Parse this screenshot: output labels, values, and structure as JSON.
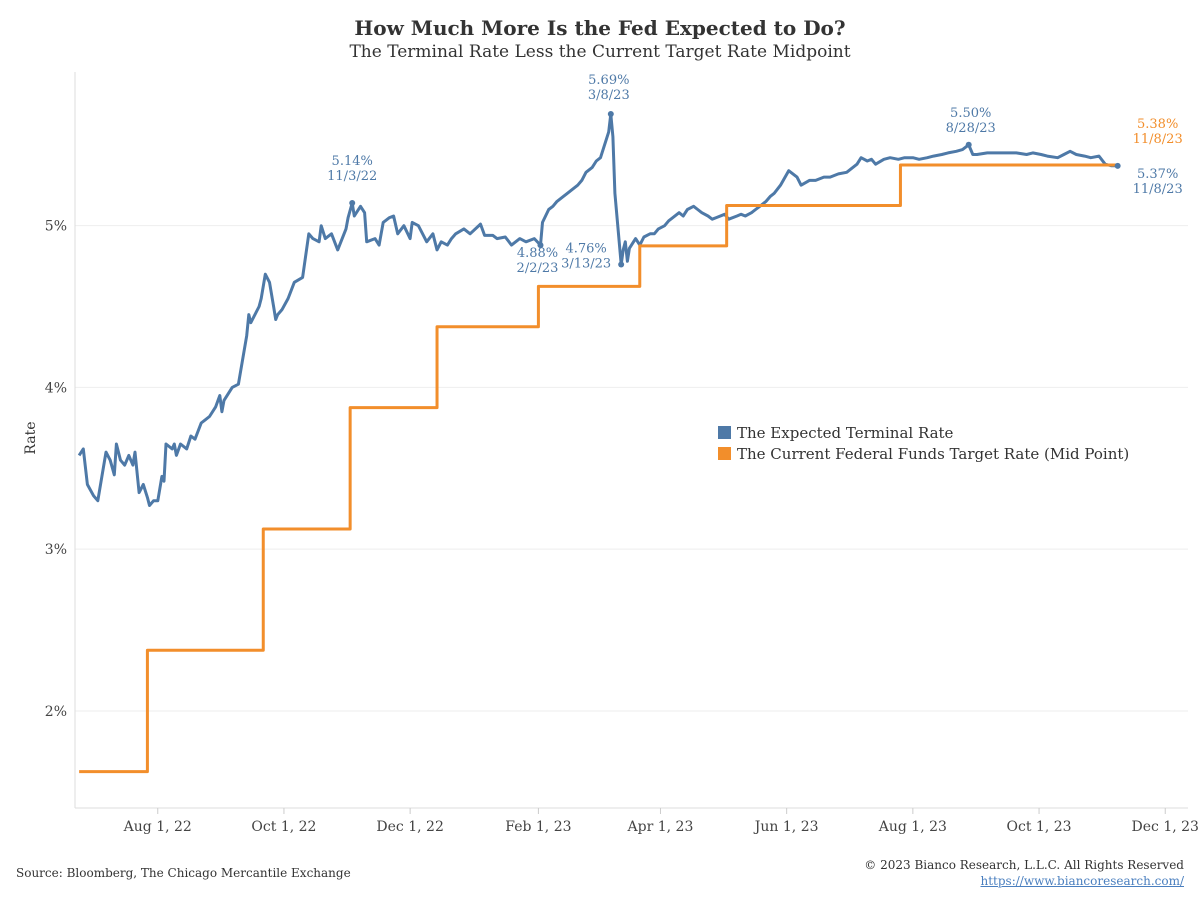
{
  "title": "How Much More Is the Fed Expected to Do?",
  "subtitle": "The Terminal Rate Less the Current Target Rate Midpoint",
  "source": "Source: Bloomberg, The Chicago Mercantile Exchange",
  "copyright": "© 2023 Bianco Research, L.L.C. All Rights Reserved",
  "url": "https://www.biancoresearch.com/",
  "colors": {
    "terminal": "#4e79a7",
    "target": "#f28e2b",
    "grid": "#eeeeee"
  },
  "chart_data": {
    "type": "line",
    "title": "How Much More Is the Fed Expected to Do?",
    "subtitle": "The Terminal Rate Less the Current Target Rate Midpoint",
    "ylabel": "Rate",
    "xlabel": "",
    "ylim": [
      1.4,
      5.95
    ],
    "xlim": [
      "2022-06-22",
      "2023-12-12"
    ],
    "grid": "horizontal",
    "legend_position": "right-center",
    "y_ticks": [
      {
        "value": 2,
        "label": "2%"
      },
      {
        "value": 3,
        "label": "3%"
      },
      {
        "value": 4,
        "label": "4%"
      },
      {
        "value": 5,
        "label": "5%"
      }
    ],
    "x_ticks": [
      {
        "date": "2022-08-01",
        "label": "Aug 1, 22"
      },
      {
        "date": "2022-10-01",
        "label": "Oct 1, 22"
      },
      {
        "date": "2022-12-01",
        "label": "Dec 1, 22"
      },
      {
        "date": "2023-02-01",
        "label": "Feb 1, 23"
      },
      {
        "date": "2023-04-01",
        "label": "Apr 1, 23"
      },
      {
        "date": "2023-06-01",
        "label": "Jun 1, 23"
      },
      {
        "date": "2023-08-01",
        "label": "Aug 1, 23"
      },
      {
        "date": "2023-10-01",
        "label": "Oct 1, 23"
      },
      {
        "date": "2023-12-01",
        "label": "Dec 1, 23"
      }
    ],
    "series": [
      {
        "name": "The Expected Terminal Rate",
        "color": "#4e79a7",
        "points": [
          [
            "2022-06-24",
            3.58
          ],
          [
            "2022-06-26",
            3.62
          ],
          [
            "2022-06-28",
            3.4
          ],
          [
            "2022-07-01",
            3.33
          ],
          [
            "2022-07-03",
            3.3
          ],
          [
            "2022-07-05",
            3.45
          ],
          [
            "2022-07-07",
            3.6
          ],
          [
            "2022-07-09",
            3.55
          ],
          [
            "2022-07-11",
            3.46
          ],
          [
            "2022-07-12",
            3.65
          ],
          [
            "2022-07-14",
            3.55
          ],
          [
            "2022-07-16",
            3.52
          ],
          [
            "2022-07-18",
            3.58
          ],
          [
            "2022-07-20",
            3.52
          ],
          [
            "2022-07-21",
            3.6
          ],
          [
            "2022-07-23",
            3.35
          ],
          [
            "2022-07-25",
            3.4
          ],
          [
            "2022-07-27",
            3.32
          ],
          [
            "2022-07-28",
            3.27
          ],
          [
            "2022-07-30",
            3.3
          ],
          [
            "2022-08-01",
            3.3
          ],
          [
            "2022-08-03",
            3.45
          ],
          [
            "2022-08-04",
            3.42
          ],
          [
            "2022-08-05",
            3.65
          ],
          [
            "2022-08-08",
            3.62
          ],
          [
            "2022-08-09",
            3.65
          ],
          [
            "2022-08-10",
            3.58
          ],
          [
            "2022-08-12",
            3.65
          ],
          [
            "2022-08-15",
            3.62
          ],
          [
            "2022-08-17",
            3.7
          ],
          [
            "2022-08-19",
            3.68
          ],
          [
            "2022-08-22",
            3.78
          ],
          [
            "2022-08-24",
            3.8
          ],
          [
            "2022-08-26",
            3.82
          ],
          [
            "2022-08-29",
            3.88
          ],
          [
            "2022-08-31",
            3.95
          ],
          [
            "2022-09-01",
            3.85
          ],
          [
            "2022-09-02",
            3.92
          ],
          [
            "2022-09-06",
            4.0
          ],
          [
            "2022-09-09",
            4.02
          ],
          [
            "2022-09-13",
            4.32
          ],
          [
            "2022-09-14",
            4.45
          ],
          [
            "2022-09-15",
            4.4
          ],
          [
            "2022-09-19",
            4.5
          ],
          [
            "2022-09-20",
            4.55
          ],
          [
            "2022-09-22",
            4.7
          ],
          [
            "2022-09-24",
            4.65
          ],
          [
            "2022-09-26",
            4.5
          ],
          [
            "2022-09-27",
            4.42
          ],
          [
            "2022-09-28",
            4.45
          ],
          [
            "2022-09-30",
            4.48
          ],
          [
            "2022-10-03",
            4.55
          ],
          [
            "2022-10-06",
            4.65
          ],
          [
            "2022-10-10",
            4.68
          ],
          [
            "2022-10-13",
            4.95
          ],
          [
            "2022-10-15",
            4.92
          ],
          [
            "2022-10-18",
            4.9
          ],
          [
            "2022-10-19",
            5.0
          ],
          [
            "2022-10-21",
            4.92
          ],
          [
            "2022-10-24",
            4.95
          ],
          [
            "2022-10-27",
            4.85
          ],
          [
            "2022-10-31",
            4.98
          ],
          [
            "2022-11-01",
            5.05
          ],
          [
            "2022-11-03",
            5.14
          ],
          [
            "2022-11-04",
            5.06
          ],
          [
            "2022-11-07",
            5.12
          ],
          [
            "2022-11-09",
            5.08
          ],
          [
            "2022-11-10",
            4.9
          ],
          [
            "2022-11-14",
            4.92
          ],
          [
            "2022-11-16",
            4.88
          ],
          [
            "2022-11-18",
            5.02
          ],
          [
            "2022-11-21",
            5.05
          ],
          [
            "2022-11-23",
            5.06
          ],
          [
            "2022-11-25",
            4.95
          ],
          [
            "2022-11-28",
            5.0
          ],
          [
            "2022-12-01",
            4.92
          ],
          [
            "2022-12-02",
            5.02
          ],
          [
            "2022-12-05",
            5.0
          ],
          [
            "2022-12-07",
            4.95
          ],
          [
            "2022-12-09",
            4.9
          ],
          [
            "2022-12-12",
            4.95
          ],
          [
            "2022-12-14",
            4.85
          ],
          [
            "2022-12-16",
            4.9
          ],
          [
            "2022-12-19",
            4.88
          ],
          [
            "2022-12-21",
            4.92
          ],
          [
            "2022-12-23",
            4.95
          ],
          [
            "2022-12-27",
            4.98
          ],
          [
            "2022-12-30",
            4.95
          ],
          [
            "2023-01-04",
            5.01
          ],
          [
            "2023-01-06",
            4.94
          ],
          [
            "2023-01-10",
            4.94
          ],
          [
            "2023-01-12",
            4.92
          ],
          [
            "2023-01-16",
            4.93
          ],
          [
            "2023-01-19",
            4.88
          ],
          [
            "2023-01-23",
            4.92
          ],
          [
            "2023-01-26",
            4.9
          ],
          [
            "2023-01-30",
            4.92
          ],
          [
            "2023-02-02",
            4.88
          ],
          [
            "2023-02-03",
            5.02
          ],
          [
            "2023-02-06",
            5.1
          ],
          [
            "2023-02-08",
            5.12
          ],
          [
            "2023-02-10",
            5.15
          ],
          [
            "2023-02-13",
            5.18
          ],
          [
            "2023-02-15",
            5.2
          ],
          [
            "2023-02-17",
            5.22
          ],
          [
            "2023-02-20",
            5.25
          ],
          [
            "2023-02-22",
            5.28
          ],
          [
            "2023-02-24",
            5.33
          ],
          [
            "2023-02-27",
            5.36
          ],
          [
            "2023-03-01",
            5.4
          ],
          [
            "2023-03-03",
            5.42
          ],
          [
            "2023-03-07",
            5.58
          ],
          [
            "2023-03-08",
            5.69
          ],
          [
            "2023-03-09",
            5.55
          ],
          [
            "2023-03-10",
            5.2
          ],
          [
            "2023-03-13",
            4.76
          ],
          [
            "2023-03-14",
            4.85
          ],
          [
            "2023-03-15",
            4.9
          ],
          [
            "2023-03-16",
            4.78
          ],
          [
            "2023-03-17",
            4.86
          ],
          [
            "2023-03-20",
            4.92
          ],
          [
            "2023-03-22",
            4.88
          ],
          [
            "2023-03-24",
            4.93
          ],
          [
            "2023-03-27",
            4.95
          ],
          [
            "2023-03-29",
            4.95
          ],
          [
            "2023-03-31",
            4.98
          ],
          [
            "2023-04-03",
            5.0
          ],
          [
            "2023-04-05",
            5.03
          ],
          [
            "2023-04-07",
            5.05
          ],
          [
            "2023-04-10",
            5.08
          ],
          [
            "2023-04-12",
            5.06
          ],
          [
            "2023-04-14",
            5.1
          ],
          [
            "2023-04-17",
            5.12
          ],
          [
            "2023-04-19",
            5.1
          ],
          [
            "2023-04-21",
            5.08
          ],
          [
            "2023-04-24",
            5.06
          ],
          [
            "2023-04-26",
            5.04
          ],
          [
            "2023-04-28",
            5.05
          ],
          [
            "2023-05-02",
            5.07
          ],
          [
            "2023-05-04",
            5.04
          ],
          [
            "2023-05-08",
            5.06
          ],
          [
            "2023-05-10",
            5.07
          ],
          [
            "2023-05-12",
            5.06
          ],
          [
            "2023-05-15",
            5.08
          ],
          [
            "2023-05-17",
            5.1
          ],
          [
            "2023-05-19",
            5.12
          ],
          [
            "2023-05-22",
            5.15
          ],
          [
            "2023-05-24",
            5.18
          ],
          [
            "2023-05-26",
            5.2
          ],
          [
            "2023-05-29",
            5.25
          ],
          [
            "2023-06-02",
            5.34
          ],
          [
            "2023-06-06",
            5.3
          ],
          [
            "2023-06-08",
            5.25
          ],
          [
            "2023-06-12",
            5.28
          ],
          [
            "2023-06-15",
            5.28
          ],
          [
            "2023-06-19",
            5.3
          ],
          [
            "2023-06-22",
            5.3
          ],
          [
            "2023-06-26",
            5.32
          ],
          [
            "2023-06-30",
            5.33
          ],
          [
            "2023-07-05",
            5.38
          ],
          [
            "2023-07-07",
            5.42
          ],
          [
            "2023-07-10",
            5.4
          ],
          [
            "2023-07-12",
            5.41
          ],
          [
            "2023-07-14",
            5.38
          ],
          [
            "2023-07-18",
            5.41
          ],
          [
            "2023-07-21",
            5.42
          ],
          [
            "2023-07-25",
            5.41
          ],
          [
            "2023-07-28",
            5.42
          ],
          [
            "2023-08-01",
            5.42
          ],
          [
            "2023-08-04",
            5.41
          ],
          [
            "2023-08-08",
            5.42
          ],
          [
            "2023-08-11",
            5.43
          ],
          [
            "2023-08-15",
            5.44
          ],
          [
            "2023-08-18",
            5.45
          ],
          [
            "2023-08-22",
            5.46
          ],
          [
            "2023-08-25",
            5.47
          ],
          [
            "2023-08-28",
            5.5
          ],
          [
            "2023-08-30",
            5.44
          ],
          [
            "2023-09-01",
            5.44
          ],
          [
            "2023-09-06",
            5.45
          ],
          [
            "2023-09-11",
            5.45
          ],
          [
            "2023-09-15",
            5.45
          ],
          [
            "2023-09-20",
            5.45
          ],
          [
            "2023-09-25",
            5.44
          ],
          [
            "2023-09-28",
            5.45
          ],
          [
            "2023-10-02",
            5.44
          ],
          [
            "2023-10-05",
            5.43
          ],
          [
            "2023-10-10",
            5.42
          ],
          [
            "2023-10-13",
            5.44
          ],
          [
            "2023-10-16",
            5.46
          ],
          [
            "2023-10-19",
            5.44
          ],
          [
            "2023-10-23",
            5.43
          ],
          [
            "2023-10-26",
            5.42
          ],
          [
            "2023-10-30",
            5.43
          ],
          [
            "2023-11-02",
            5.38
          ],
          [
            "2023-11-05",
            5.37
          ],
          [
            "2023-11-08",
            5.37
          ]
        ]
      },
      {
        "name": "The Current Federal Funds Target Rate (Mid Point)",
        "color": "#f28e2b",
        "step": true,
        "points": [
          [
            "2022-06-24",
            1.625
          ],
          [
            "2022-07-27",
            2.375
          ],
          [
            "2022-09-21",
            3.125
          ],
          [
            "2022-11-02",
            3.875
          ],
          [
            "2022-12-14",
            4.375
          ],
          [
            "2023-02-01",
            4.625
          ],
          [
            "2023-03-22",
            4.875
          ],
          [
            "2023-05-03",
            5.125
          ],
          [
            "2023-07-26",
            5.375
          ],
          [
            "2023-11-08",
            5.375
          ]
        ]
      }
    ],
    "annotations": [
      {
        "series": 0,
        "date": "2022-11-03",
        "value": 5.14,
        "text": [
          "5.14%",
          "11/3/22"
        ],
        "color": "#4e79a7"
      },
      {
        "series": 0,
        "date": "2023-02-02",
        "value": 4.88,
        "text": [
          "4.88%",
          "2/2/23"
        ],
        "color": "#4e79a7"
      },
      {
        "series": 0,
        "date": "2023-03-08",
        "value": 5.69,
        "text": [
          "5.69%",
          "3/8/23"
        ],
        "color": "#4e79a7"
      },
      {
        "series": 0,
        "date": "2023-03-13",
        "value": 4.76,
        "text": [
          "4.76%",
          "3/13/23"
        ],
        "color": "#4e79a7"
      },
      {
        "series": 0,
        "date": "2023-08-28",
        "value": 5.5,
        "text": [
          "5.50%",
          "8/28/23"
        ],
        "color": "#4e79a7"
      },
      {
        "series": 0,
        "date": "2023-11-08",
        "value": 5.37,
        "text": [
          "5.37%",
          "11/8/23"
        ],
        "color": "#4e79a7"
      },
      {
        "series": 1,
        "date": "2023-11-08",
        "value": 5.38,
        "text": [
          "5.38%",
          "11/8/23"
        ],
        "color": "#f28e2b"
      }
    ]
  }
}
